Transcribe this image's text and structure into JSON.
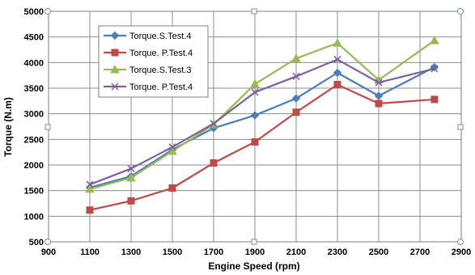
{
  "chart_data": {
    "type": "line",
    "xlabel": "Engine Speed (rpm)",
    "ylabel": "Torque (N.m)",
    "xlim": [
      900,
      2900
    ],
    "ylim": [
      500,
      5000
    ],
    "x_ticks": [
      900,
      1100,
      1300,
      1500,
      1700,
      1900,
      2100,
      2300,
      2500,
      2700,
      2900
    ],
    "y_ticks": [
      500,
      1000,
      1500,
      2000,
      2500,
      3000,
      3500,
      4000,
      4500,
      5000
    ],
    "grid": {
      "x": true,
      "y": true
    },
    "legend_position": "top-left",
    "x": [
      1100,
      1300,
      1500,
      1700,
      1900,
      2100,
      2300,
      2500,
      2770
    ],
    "series": [
      {
        "name": "Torque.S.Test.4",
        "color": "#4a7ebb",
        "marker": "diamond",
        "values": [
          1560,
          1780,
          2300,
          2720,
          2970,
          3300,
          3800,
          3350,
          3910
        ]
      },
      {
        "name": "Torque. P.Test.4",
        "color": "#be4b48",
        "marker": "square",
        "values": [
          1120,
          1300,
          1550,
          2040,
          2450,
          3030,
          3570,
          3200,
          3280
        ]
      },
      {
        "name": "Torque.S.Test.3",
        "color": "#98b954",
        "marker": "triangle",
        "values": [
          1530,
          1750,
          2270,
          2790,
          3580,
          4080,
          4380,
          3660,
          4430
        ]
      },
      {
        "name": "Torque. P.Test.4",
        "color": "#7d60a0",
        "marker": "x",
        "values": [
          1620,
          1930,
          2350,
          2810,
          3420,
          3730,
          4060,
          3610,
          3880
        ]
      }
    ]
  }
}
